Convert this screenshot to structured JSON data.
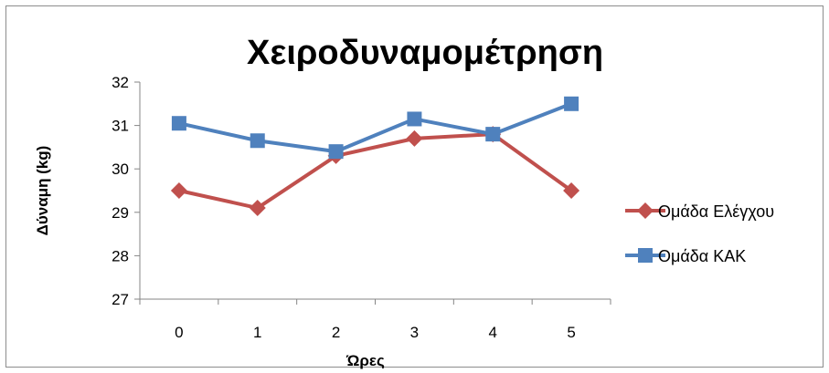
{
  "chart_data": {
    "type": "line",
    "title": "Χειροδυναμομέτρηση",
    "xlabel": "Ώρες",
    "ylabel": "Δύναμη (kg)",
    "x": [
      0,
      1,
      2,
      3,
      4,
      5
    ],
    "ylim": [
      27,
      32
    ],
    "yticks": [
      27,
      28,
      29,
      30,
      31,
      32
    ],
    "grid": false,
    "legend_position": "right",
    "series": [
      {
        "name": "Ομάδα Ελέγχου",
        "color": "#c0504d",
        "marker": "diamond",
        "values": [
          29.5,
          29.1,
          30.3,
          30.7,
          30.8,
          29.5
        ]
      },
      {
        "name": "Ομάδα ΚΑΚ",
        "color": "#4f81bd",
        "marker": "square",
        "values": [
          31.05,
          30.65,
          30.4,
          31.15,
          30.8,
          31.5
        ]
      }
    ]
  }
}
